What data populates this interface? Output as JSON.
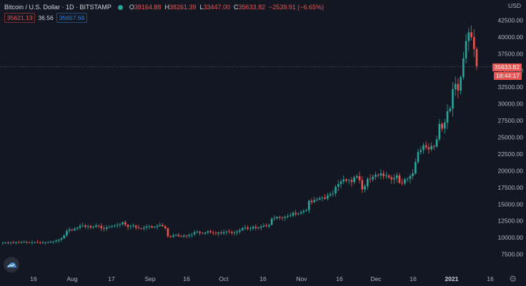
{
  "header": {
    "symbol": "Bitcoin / U.S. Dollar · 1D · BITSTAMP",
    "ohlc": [
      {
        "k": "O",
        "v": "38164.88"
      },
      {
        "k": "H",
        "v": "38261.39"
      },
      {
        "k": "L",
        "v": "33447.00"
      },
      {
        "k": "C",
        "v": "35633.82"
      }
    ],
    "change": "−2539.91 (−6.65%)",
    "indicator_values": [
      "35621.13",
      "36.56",
      "35657.69"
    ]
  },
  "currency": "USD",
  "price_labels": {
    "last": "35633.82",
    "countdown": "18:44:17"
  },
  "colors": {
    "background": "#131722",
    "up": "#26a69a",
    "down": "#ef5350",
    "text": "#b2b5be"
  },
  "icons": {
    "logo": "tradingview-cloud-icon",
    "settings": "gear-icon"
  },
  "chart_data": {
    "type": "candlestick",
    "ylim": [
      5000,
      45000
    ],
    "yticks": [
      7500,
      10000,
      12500,
      15000,
      17500,
      20000,
      22500,
      25000,
      27500,
      30000,
      32500,
      35000,
      37500,
      40000,
      42500
    ],
    "ytick_labels": [
      "7500.00",
      "10000.00",
      "12500.00",
      "15000.00",
      "17500.00",
      "20000.00",
      "22500.00",
      "25000.00",
      "27500.00",
      "30000.00",
      "32500.00",
      "35000.00",
      "37500.00",
      "40000.00",
      "42500.00"
    ],
    "xticks": [
      "16",
      "Aug",
      "17",
      "Sep",
      "16",
      "Oct",
      "16",
      "Nov",
      "16",
      "Dec",
      "16",
      "2021",
      "16"
    ],
    "grid": false,
    "series": {
      "start_index": 0,
      "closes": [
        9200,
        9250,
        9220,
        9300,
        9260,
        9280,
        9240,
        9300,
        9320,
        9290,
        9260,
        9300,
        9310,
        9280,
        9250,
        9260,
        9280,
        9300,
        9350,
        9400,
        9550,
        9700,
        9900,
        10300,
        11000,
        11200,
        11100,
        11350,
        11500,
        11750,
        11800,
        11600,
        11700,
        11500,
        11600,
        11800,
        11750,
        11400,
        11300,
        11500,
        11600,
        11700,
        11800,
        11900,
        12000,
        12300,
        11900,
        11600,
        11700,
        11800,
        11500,
        11400,
        11350,
        11500,
        11650,
        11700,
        11500,
        11600,
        11750,
        11900,
        11700,
        11400,
        10200,
        10100,
        10300,
        10400,
        10200,
        10150,
        10300,
        10250,
        10400,
        10500,
        10800,
        10900,
        10700,
        10600,
        10750,
        10950,
        10800,
        10700,
        10600,
        10750,
        10650,
        10800,
        10900,
        10850,
        10700,
        10750,
        10900,
        11100,
        11400,
        11500,
        11300,
        11350,
        11600,
        11400,
        11500,
        11650,
        11800,
        11700,
        11900,
        12800,
        12900,
        13100,
        13000,
        12950,
        13100,
        13200,
        13300,
        13700,
        13500,
        13600,
        13800,
        14000,
        14100,
        15500,
        15300,
        15600,
        15700,
        15900,
        16000,
        15800,
        16300,
        16500,
        16600,
        17600,
        18000,
        18400,
        18700,
        18500,
        18600,
        18300,
        19000,
        19200,
        18600,
        17200,
        17700,
        18800,
        18700,
        19100,
        19400,
        19300,
        19600,
        19200,
        19300,
        19000,
        18700,
        18900,
        19300,
        18200,
        18100,
        18700,
        18800,
        19200,
        19600,
        21300,
        22800,
        23100,
        23800,
        23500,
        23200,
        23700,
        23600,
        24700,
        27000,
        26300,
        27200,
        28900,
        29300,
        32200,
        33000,
        32000,
        34000,
        36800,
        39400,
        40700,
        40000,
        38200,
        35633
      ]
    }
  }
}
